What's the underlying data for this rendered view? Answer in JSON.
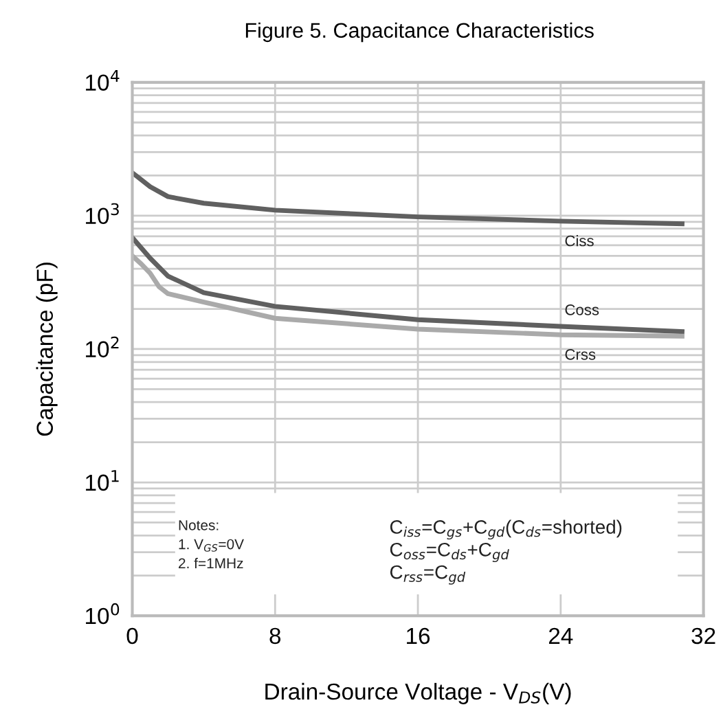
{
  "chart_data": {
    "type": "line",
    "title": "Figure 5. Capacitance Characteristics",
    "xlabel": "Drain-Source Voltage - V$_{DS}$(V)",
    "ylabel": "Capacitance (pF)",
    "xlim": [
      0,
      32
    ],
    "xticks": [
      0,
      8,
      16,
      24,
      32
    ],
    "ylim": [
      1,
      10000
    ],
    "yticks": [
      {
        "value": 1,
        "label": "10$^{0}$"
      },
      {
        "value": 10,
        "label": "10$^{1}$"
      },
      {
        "value": 100,
        "label": "10$^{2}$"
      },
      {
        "value": 1000,
        "label": "10$^{3}$"
      },
      {
        "value": 10000,
        "label": "10$^{4}$"
      }
    ],
    "log": "y",
    "grid": true,
    "marker": "none",
    "line_style": "solid",
    "legend": false,
    "series": [
      {
        "name": "Ciss",
        "color": "#606060",
        "x": [
          0,
          1,
          2,
          4,
          8,
          16,
          24,
          30.8
        ],
        "values": [
          2100,
          1650,
          1390,
          1240,
          1100,
          980,
          910,
          870
        ]
      },
      {
        "name": "Coss",
        "color": "#606060",
        "x": [
          0,
          1,
          2,
          4,
          8,
          16,
          24,
          30.8
        ],
        "values": [
          685,
          480,
          352,
          265,
          209,
          166,
          148,
          135
        ]
      },
      {
        "name": "Crss",
        "color": "#aaaaaa",
        "x": [
          0,
          0.5,
          1,
          1.5,
          2,
          4,
          8,
          16,
          24,
          30.8
        ],
        "values": [
          500,
          435,
          370,
          293,
          260,
          225,
          170,
          141,
          128,
          125
        ]
      }
    ],
    "annotations": [
      "Notes:\n1. V$_{GS}$=0V\n2. f=1MHz",
      "C$_{iss}$=C$_{gs}$+C$_{gd}$(C$_{ds}$=shorted)\nC$_{oss}$=C$_{ds}$+C$_{gd}$\nC$_{rss}$=C$_{gd}$"
    ]
  }
}
